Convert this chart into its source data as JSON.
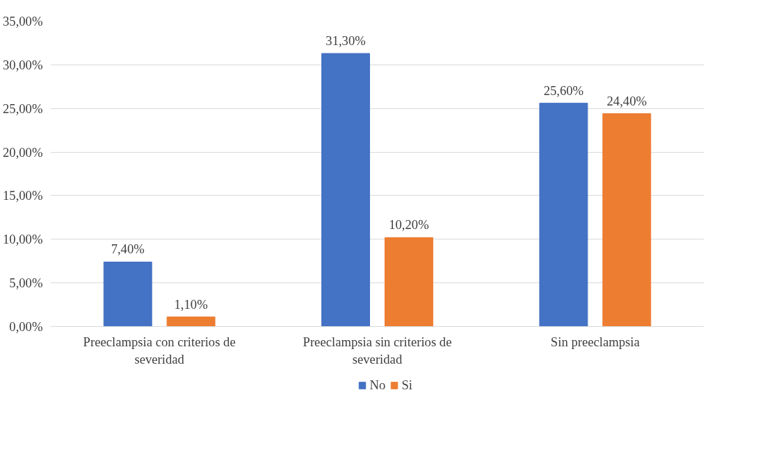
{
  "chart_data": {
    "type": "bar",
    "categories": [
      "Preeclampsia con criterios de severidad",
      "Preeclampsia sin criterios de severidad",
      "Sin preeclampsia"
    ],
    "series": [
      {
        "name": "No",
        "color": "#4472c4",
        "values": [
          7.4,
          31.3,
          25.6
        ],
        "value_labels": [
          "7,40%",
          "31,30%",
          "25,60%"
        ]
      },
      {
        "name": "Si",
        "color": "#ed7d31",
        "values": [
          1.1,
          10.2,
          24.4
        ],
        "value_labels": [
          "1,10%",
          "10,20%",
          "24,40%"
        ]
      }
    ],
    "ylim": [
      0,
      35
    ],
    "yticks": [
      {
        "value": 0,
        "label": "0,00%"
      },
      {
        "value": 5,
        "label": "5,00%"
      },
      {
        "value": 10,
        "label": "10,00%"
      },
      {
        "value": 15,
        "label": "15,00%"
      },
      {
        "value": 20,
        "label": "20,00%"
      },
      {
        "value": 25,
        "label": "25,00%"
      },
      {
        "value": 30,
        "label": "30,00%"
      },
      {
        "value": 35,
        "label": "35,00%"
      }
    ],
    "grid": "y",
    "legend": "bottom"
  }
}
